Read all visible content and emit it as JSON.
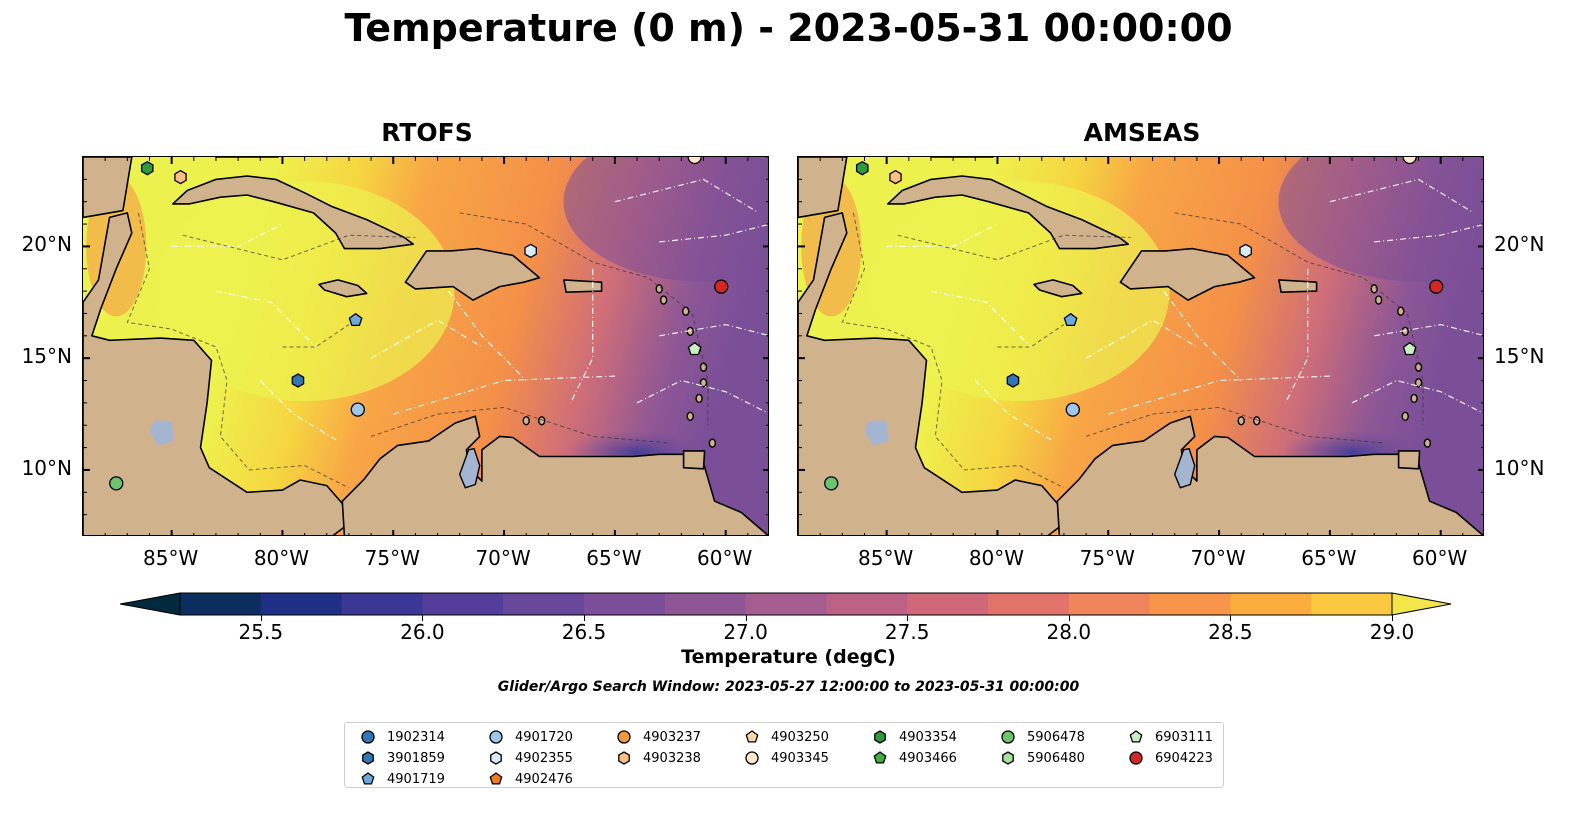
{
  "title": "Temperature (0 m) - 2023-05-31 00:00:00",
  "panels": [
    {
      "id": "rtofs",
      "title": "RTOFS"
    },
    {
      "id": "amseas",
      "title": "AMSEAS"
    }
  ],
  "axes": {
    "lon_ticks": [
      "85°W",
      "80°W",
      "75°W",
      "70°W",
      "65°W",
      "60°W"
    ],
    "lat_ticks": [
      "20°N",
      "15°N",
      "10°N"
    ],
    "lon_values": [
      -85,
      -80,
      -75,
      -70,
      -65,
      -60
    ],
    "lat_values": [
      20,
      15,
      10
    ],
    "lon_range": [
      -89,
      -58
    ],
    "lat_range": [
      7,
      24
    ]
  },
  "colorbar": {
    "label": "Temperature (degC)",
    "ticks": [
      "25.5",
      "26.0",
      "26.5",
      "27.0",
      "27.5",
      "28.0",
      "28.5",
      "29.0"
    ],
    "min": 25.25,
    "max": 29.5,
    "colors": [
      "#022a3d",
      "#0c2e5f",
      "#1f2f86",
      "#3a3796",
      "#523e9a",
      "#66479a",
      "#7a4e98",
      "#8f5695",
      "#a55d90",
      "#bb6285",
      "#cf6878",
      "#e2736a",
      "#f0845a",
      "#f9954a",
      "#fdac3e",
      "#fcc83f",
      "#f3e64b"
    ],
    "extend": "both"
  },
  "search_window": "Glider/Argo Search Window: 2023-05-27 12:00:00 to 2023-05-31 00:00:00",
  "platforms": [
    {
      "id": "1902314",
      "marker": "circle",
      "color": "#2f77b7",
      "lon": null,
      "lat": null
    },
    {
      "id": "3901859",
      "marker": "hexagon",
      "color": "#2f77b7",
      "lon": -79.3,
      "lat": 14.0
    },
    {
      "id": "4901719",
      "marker": "pentagon",
      "color": "#6ea9dc",
      "lon": -76.7,
      "lat": 16.7
    },
    {
      "id": "4901720",
      "marker": "circle",
      "color": "#9ec7ea",
      "lon": -76.6,
      "lat": 12.7
    },
    {
      "id": "4902355",
      "marker": "hexagon",
      "color": "#d8ebf7",
      "lon": -68.8,
      "lat": 19.8
    },
    {
      "id": "4902476",
      "marker": "pentagon",
      "color": "#ef7c1a",
      "lon": null,
      "lat": null
    },
    {
      "id": "4903237",
      "marker": "circle",
      "color": "#f59a3c",
      "lon": null,
      "lat": null
    },
    {
      "id": "4903238",
      "marker": "hexagon",
      "color": "#fbbf84",
      "lon": -84.6,
      "lat": 23.1
    },
    {
      "id": "4903250",
      "marker": "pentagon",
      "color": "#fcd5a8",
      "lon": null,
      "lat": null
    },
    {
      "id": "4903345",
      "marker": "circle",
      "color": "#fde6c9",
      "lon": -61.4,
      "lat": 24.0
    },
    {
      "id": "4903354",
      "marker": "hexagon",
      "color": "#2e9a3b",
      "lon": -86.1,
      "lat": 23.5
    },
    {
      "id": "4903466",
      "marker": "pentagon",
      "color": "#3fae3f",
      "lon": null,
      "lat": null
    },
    {
      "id": "5906478",
      "marker": "circle",
      "color": "#6cc46c",
      "lon": -87.5,
      "lat": 9.4
    },
    {
      "id": "5906480",
      "marker": "hexagon",
      "color": "#a8e0a0",
      "lon": null,
      "lat": null
    },
    {
      "id": "6903111",
      "marker": "pentagon",
      "color": "#c8eec4",
      "lon": -61.4,
      "lat": 15.4
    },
    {
      "id": "6904223",
      "marker": "circle",
      "color": "#d62728",
      "lon": -60.2,
      "lat": 18.2
    }
  ],
  "colors": {
    "land": "#d0b38c",
    "pacific_mask": "#96b6e0",
    "lakes": "#a3b5d1"
  }
}
